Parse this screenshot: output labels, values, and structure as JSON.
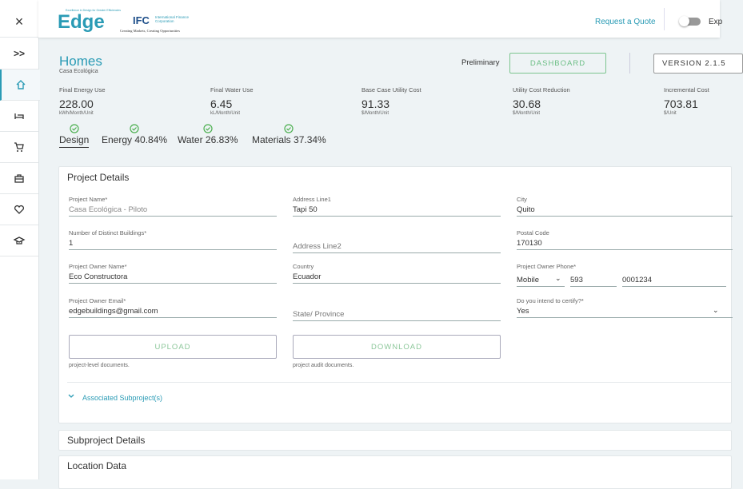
{
  "header": {
    "logo": "Edge",
    "logo_tagline": "Excellence in Design for Greater Efficiencies",
    "ifc": "IFC",
    "ifc_name": "International Finance Corporation",
    "ifc_tagline": "Creating Markets, Creating Opportunities",
    "request_quote": "Request a Quote",
    "toggle_label": "Exp"
  },
  "sidebar": {
    "close": "×",
    "expand": ">>"
  },
  "project": {
    "title": "Homes",
    "subtitle": "Casa Ecológica",
    "status": "Preliminary",
    "dashboard": "DASHBOARD",
    "version": "VERSION 2.1.5"
  },
  "metrics": [
    {
      "label": "Final Energy Use",
      "value": "228.00",
      "unit": "kWh/Month/Unit"
    },
    {
      "label": "Final Water Use",
      "value": "6.45",
      "unit": "kL/Month/Unit"
    },
    {
      "label": "Base Case Utility Cost",
      "value": "91.33",
      "unit": "$/Month/Unit"
    },
    {
      "label": "Utility Cost Reduction",
      "value": "30.68",
      "unit": "$/Month/Unit"
    },
    {
      "label": "Incremental Cost",
      "value": "703.81",
      "unit": "$/Unit"
    }
  ],
  "tabs": [
    "Design",
    "Energy 40.84%",
    "Water 26.83%",
    "Materials 37.34%"
  ],
  "project_details": {
    "title": "Project Details",
    "fields": [
      {
        "label": "Project Name*",
        "value": "Casa Ecológica - Piloto"
      },
      {
        "label": "Address Line1",
        "value": "Tapi 50"
      },
      {
        "label": "City",
        "value": "Quito"
      },
      {
        "label": "Number of Distinct Buildings*",
        "value": "1"
      },
      {
        "placeholder": "Address Line2"
      },
      {
        "label": "Postal Code",
        "value": "170130"
      },
      {
        "label": "Project Owner Name*",
        "value": "Eco Constructora"
      },
      {
        "label": "Country",
        "value": "Ecuador"
      },
      {
        "label": "Project Owner Phone*",
        "parts": [
          "Mobile",
          "593",
          "0001234"
        ]
      },
      {
        "label": "Project Owner Email*",
        "value": "edgebuildings@gmail.com"
      },
      {
        "placeholder": "State/ Province"
      },
      {
        "label": "Do you intend to certify?*",
        "value": "Yes",
        "dropdown": true
      }
    ],
    "upload": "UPLOAD",
    "upload_note": "project-level documents.",
    "download": "DOWNLOAD",
    "download_note": "project audit documents.",
    "associated": "Associated Subproject(s)"
  },
  "sections": [
    "Subproject Details",
    "Location Data"
  ]
}
